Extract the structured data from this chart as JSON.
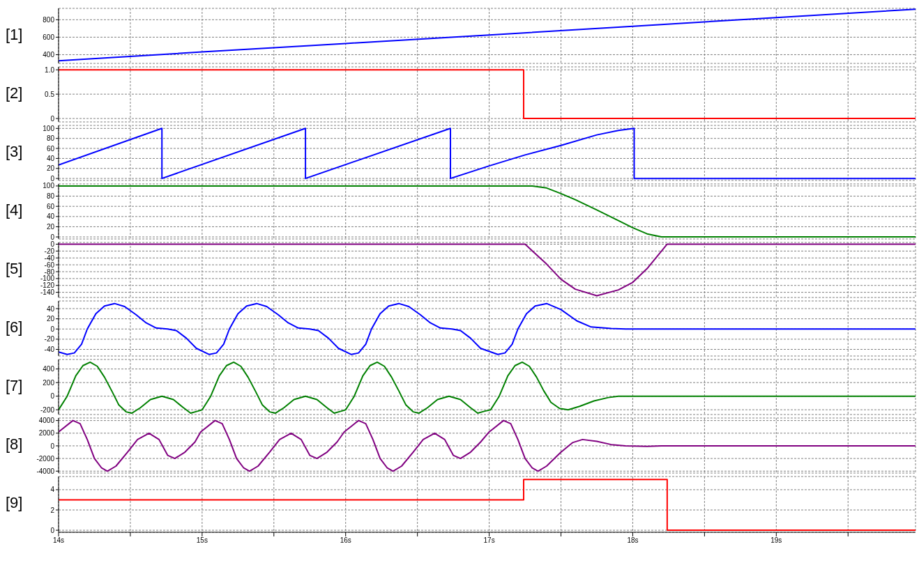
{
  "chart_data": [
    {
      "type": "line",
      "ylabel": "[1]",
      "x": [
        14,
        15,
        16,
        17,
        18,
        19,
        19.97
      ],
      "series": [
        {
          "color": "#0000ff",
          "values": [
            330,
            431,
            528,
            625,
            725,
            825,
            920
          ]
        }
      ],
      "xlim": [
        14,
        19.97
      ],
      "ylim": [
        300,
        930
      ],
      "yticks": [
        400,
        600,
        800
      ],
      "xticks": [
        14,
        14.5,
        15,
        15.5,
        16,
        16.5,
        17,
        17.5,
        18,
        18.5,
        19,
        19.5
      ],
      "grid": true,
      "tick_labels": "y"
    },
    {
      "type": "step",
      "ylabel": "[2]",
      "x": [
        14,
        17.24,
        19.97
      ],
      "series": [
        {
          "color": "#ff0000",
          "values": [
            1,
            0,
            0
          ]
        }
      ],
      "xlim": [
        14,
        19.97
      ],
      "ylim": [
        -0.07,
        1.06
      ],
      "yticks": [
        0,
        0.5,
        {
          "value": 1,
          "label": "1.0"
        }
      ],
      "xticks": [
        14,
        14.5,
        15,
        15.5,
        16,
        16.5,
        17,
        17.5,
        18,
        18.5,
        19,
        19.5
      ],
      "grid": true,
      "tick_labels": "y"
    },
    {
      "type": "line",
      "ylabel": "[3]",
      "x": [
        14,
        14.72,
        14.72,
        15.72,
        15.72,
        16.73,
        16.73,
        17.0,
        17.25,
        17.5,
        17.75,
        17.9,
        18.01,
        18.01,
        19.97
      ],
      "series": [
        {
          "color": "#0000ff",
          "values": [
            27,
            100,
            0,
            100,
            0,
            100,
            0,
            25,
            47,
            66,
            87,
            96,
            100,
            0,
            0
          ]
        }
      ],
      "xlim": [
        14,
        19.97
      ],
      "ylim": [
        -4,
        106
      ],
      "yticks": [
        0,
        20,
        40,
        60,
        80,
        100
      ],
      "xticks": [
        14,
        14.5,
        15,
        15.5,
        16,
        16.5,
        17,
        17.5,
        18,
        18.5,
        19,
        19.5
      ],
      "grid": true,
      "tick_labels": "y"
    },
    {
      "type": "line",
      "ylabel": "[4]",
      "x": [
        14,
        17.3,
        17.4,
        17.5,
        17.6,
        17.75,
        17.9,
        18.0,
        18.1,
        18.2,
        19.97
      ],
      "series": [
        {
          "color": "#008000",
          "values": [
            100,
            100,
            96,
            85,
            73,
            53,
            32,
            18,
            6,
            0,
            0
          ]
        }
      ],
      "xlim": [
        14,
        19.97
      ],
      "ylim": [
        -4,
        104
      ],
      "yticks": [
        0,
        20,
        40,
        60,
        80,
        100
      ],
      "xticks": [
        14,
        14.5,
        15,
        15.5,
        16,
        16.5,
        17,
        17.5,
        18,
        18.5,
        19,
        19.5
      ],
      "grid": true,
      "tick_labels": "y"
    },
    {
      "type": "line",
      "ylabel": "[5]",
      "x": [
        14,
        17.25,
        17.4,
        17.5,
        17.6,
        17.75,
        17.9,
        18.0,
        18.1,
        18.24,
        19.97
      ],
      "series": [
        {
          "color": "#800080",
          "values": [
            0,
            0,
            -58,
            -102,
            -131,
            -150,
            -133,
            -111,
            -71,
            0,
            0
          ]
        }
      ],
      "xlim": [
        14,
        19.97
      ],
      "ylim": [
        -155,
        5
      ],
      "yticks": [
        -140,
        -120,
        -100,
        -80,
        -60,
        -40,
        -20,
        0
      ],
      "xticks": [
        14,
        14.5,
        15,
        15.5,
        16,
        16.5,
        17,
        17.5,
        18,
        18.5,
        19,
        19.5
      ],
      "grid": true,
      "tick_labels": "y"
    },
    {
      "type": "line",
      "ylabel": "[6]",
      "x": [
        14,
        14.06,
        14.11,
        14.16,
        14.2,
        14.26,
        14.32,
        14.39,
        14.46,
        14.54,
        14.61,
        14.68,
        14.76,
        14.82,
        14.89,
        14.96,
        15.05,
        15.1,
        15.15,
        15.19,
        15.25,
        15.31,
        15.38,
        15.45,
        15.53,
        15.6,
        15.67,
        15.75,
        15.81,
        15.88,
        15.95,
        16.04,
        16.09,
        16.14,
        16.18,
        16.24,
        16.3,
        16.37,
        16.44,
        16.52,
        16.59,
        16.66,
        16.74,
        16.8,
        16.87,
        16.94,
        17.06,
        17.11,
        17.16,
        17.2,
        17.26,
        17.32,
        17.4,
        17.5,
        17.61,
        17.71,
        17.85,
        17.95,
        19.97
      ],
      "series": [
        {
          "color": "#0000ff",
          "values": [
            -45,
            -50,
            -47,
            -30,
            0,
            30,
            45,
            50,
            44,
            28,
            12,
            2,
            0,
            -3,
            -18,
            -38,
            -50,
            -47,
            -30,
            0,
            30,
            45,
            50,
            44,
            28,
            12,
            2,
            0,
            -3,
            -18,
            -38,
            -50,
            -47,
            -30,
            0,
            30,
            45,
            50,
            44,
            28,
            12,
            2,
            0,
            -3,
            -18,
            -38,
            -50,
            -47,
            -30,
            0,
            30,
            45,
            50,
            38,
            16,
            4,
            1,
            0,
            0
          ]
        }
      ],
      "xlim": [
        14,
        19.97
      ],
      "ylim": [
        -53,
        55
      ],
      "yticks": [
        -40,
        -20,
        0,
        20,
        40
      ],
      "xticks": [
        14,
        14.5,
        15,
        15.5,
        16,
        16.5,
        17,
        17.5,
        18,
        18.5,
        19,
        19.5
      ],
      "grid": true,
      "tick_labels": "y"
    },
    {
      "type": "line",
      "ylabel": "[7]",
      "x": [
        14.0,
        14.06,
        14.12,
        14.17,
        14.22,
        14.27,
        14.32,
        14.37,
        14.42,
        14.47,
        14.51,
        14.57,
        14.64,
        14.72,
        14.8,
        14.87,
        14.92,
        14.97,
        15.0,
        15.06,
        15.12,
        15.17,
        15.22,
        15.27,
        15.32,
        15.37,
        15.42,
        15.47,
        15.51,
        15.57,
        15.64,
        15.72,
        15.8,
        15.87,
        15.92,
        15.97,
        16.0,
        16.06,
        16.12,
        16.17,
        16.22,
        16.27,
        16.32,
        16.37,
        16.42,
        16.47,
        16.51,
        16.57,
        16.64,
        16.72,
        16.8,
        16.87,
        16.92,
        16.97,
        17.01,
        17.07,
        17.13,
        17.18,
        17.23,
        17.28,
        17.33,
        17.38,
        17.43,
        17.49,
        17.55,
        17.63,
        17.73,
        17.83,
        17.9,
        19.97
      ],
      "series": [
        {
          "color": "#008000",
          "values": [
            -200,
            0,
            300,
            450,
            500,
            440,
            280,
            80,
            -130,
            -230,
            -250,
            -170,
            -50,
            0,
            -50,
            -170,
            -250,
            -220,
            -200,
            0,
            300,
            450,
            500,
            440,
            280,
            80,
            -130,
            -230,
            -250,
            -170,
            -50,
            0,
            -50,
            -170,
            -250,
            -220,
            -200,
            0,
            300,
            450,
            500,
            440,
            280,
            80,
            -130,
            -230,
            -250,
            -170,
            -50,
            0,
            -50,
            -170,
            -250,
            -220,
            -200,
            0,
            300,
            450,
            500,
            440,
            280,
            80,
            -90,
            -180,
            -200,
            -150,
            -70,
            -20,
            0,
            0
          ]
        }
      ],
      "xlim": [
        14,
        19.97
      ],
      "ylim": [
        -270,
        540
      ],
      "yticks": [
        -200,
        0,
        200,
        400
      ],
      "xticks": [
        14,
        14.5,
        15,
        15.5,
        16,
        16.5,
        17,
        17.5,
        18,
        18.5,
        19,
        19.5
      ],
      "grid": true,
      "tick_labels": "y"
    },
    {
      "type": "line",
      "ylabel": "[8]",
      "x": [
        14.0,
        14.1,
        14.15,
        14.2,
        14.25,
        14.3,
        14.34,
        14.4,
        14.48,
        14.55,
        14.63,
        14.7,
        14.76,
        14.81,
        14.88,
        14.95,
        14.99,
        15.09,
        15.14,
        15.19,
        15.24,
        15.29,
        15.33,
        15.39,
        15.47,
        15.54,
        15.62,
        15.69,
        15.75,
        15.8,
        15.87,
        15.94,
        15.99,
        16.09,
        16.14,
        16.19,
        16.24,
        16.29,
        16.33,
        16.39,
        16.47,
        16.54,
        16.62,
        16.69,
        16.75,
        16.8,
        16.87,
        16.94,
        17.0,
        17.1,
        17.15,
        17.2,
        17.25,
        17.3,
        17.34,
        17.4,
        17.5,
        17.58,
        17.65,
        17.75,
        17.85,
        17.95,
        18.1,
        18.2,
        19.97
      ],
      "series": [
        {
          "color": "#800080",
          "values": [
            2200,
            4000,
            3500,
            1000,
            -2000,
            -3500,
            -4000,
            -3200,
            -1000,
            1000,
            2000,
            1000,
            -1500,
            -2000,
            -1000,
            600,
            2200,
            4000,
            3500,
            1000,
            -2000,
            -3500,
            -4000,
            -3200,
            -1000,
            1000,
            2000,
            1000,
            -1500,
            -2000,
            -1000,
            600,
            2200,
            4000,
            3500,
            1000,
            -2000,
            -3500,
            -4000,
            -3200,
            -1000,
            1000,
            2000,
            1000,
            -1500,
            -2000,
            -1000,
            600,
            2200,
            4000,
            3500,
            1000,
            -2000,
            -3500,
            -4000,
            -3200,
            -1000,
            500,
            1000,
            700,
            200,
            0,
            -100,
            0,
            0
          ]
        }
      ],
      "xlim": [
        14,
        19.97
      ],
      "ylim": [
        -4300,
        4400
      ],
      "yticks": [
        -4000,
        -2000,
        0,
        2000,
        4000
      ],
      "xticks": [
        14,
        14.5,
        15,
        15.5,
        16,
        16.5,
        17,
        17.5,
        18,
        18.5,
        19,
        19.5
      ],
      "grid": true,
      "tick_labels": "y"
    },
    {
      "type": "step",
      "ylabel": "[9]",
      "x": [
        14,
        17.24,
        18.24,
        19.97
      ],
      "series": [
        {
          "color": "#ff0000",
          "values": [
            3,
            5,
            0,
            0
          ]
        }
      ],
      "xlim": [
        14,
        19.97
      ],
      "ylim": [
        -0.2,
        5.3
      ],
      "yticks": [
        0,
        2,
        4
      ],
      "xticks": [
        {
          "value": 14,
          "label": "14s"
        },
        {
          "value": 14.5,
          "label": null
        },
        {
          "value": 15,
          "label": "15s"
        },
        {
          "value": 15.5,
          "label": null
        },
        {
          "value": 16,
          "label": "16s"
        },
        {
          "value": 16.5,
          "label": null
        },
        {
          "value": 17,
          "label": "17s"
        },
        {
          "value": 17.5,
          "label": null
        },
        {
          "value": 18,
          "label": "18s"
        },
        {
          "value": 18.5,
          "label": null
        },
        {
          "value": 19,
          "label": "19s"
        },
        {
          "value": 19.5,
          "label": null
        }
      ],
      "grid": true
    }
  ]
}
